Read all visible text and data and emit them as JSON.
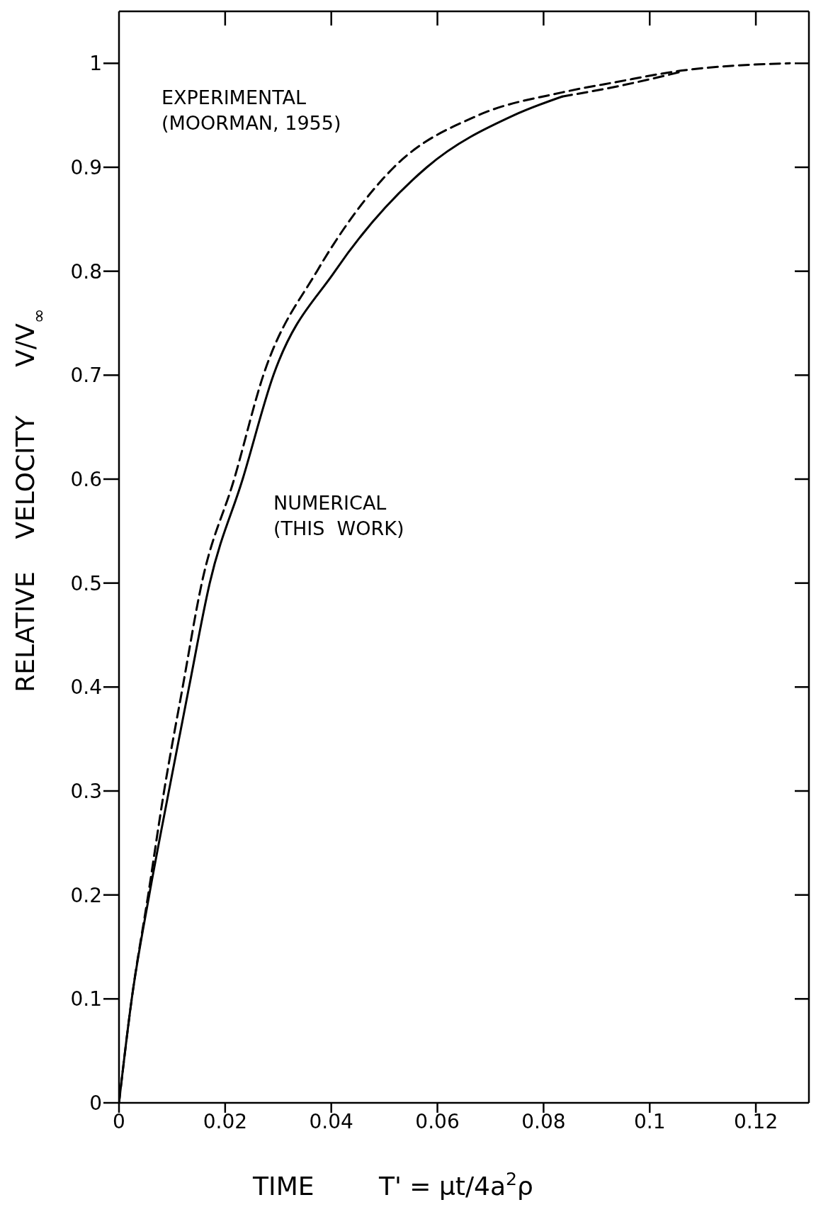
{
  "chart_data": {
    "type": "line",
    "xlabel": "TIME        T' = μt/4a$^{2}$ρ",
    "ylabel": "RELATIVE    VELOCITY      V/V$_{∞}$",
    "xlim": [
      0,
      0.13
    ],
    "ylim": [
      0,
      1.05
    ],
    "xticks": [
      0,
      0.02,
      0.04,
      0.06,
      0.08,
      0.1,
      0.12
    ],
    "yticks": [
      0,
      0.1,
      0.2,
      0.3,
      0.4,
      0.5,
      0.6,
      0.7,
      0.8,
      0.9,
      1.0
    ],
    "legend": false,
    "marker": "none",
    "annotations": [
      "EXPERIMENTAL\n(MOORMAN, 1955)",
      "NUMERICAL\n(THIS  WORK)"
    ],
    "series": [
      {
        "color": "#000000",
        "line_style": "dashed",
        "x": [
          0,
          0.0024,
          0.0055,
          0.0085,
          0.012,
          0.0156,
          0.0217,
          0.0272,
          0.0373,
          0.0518,
          0.0677,
          0.0835,
          0.0937,
          0.106,
          0.1206,
          0.1264
        ],
        "values": [
          0,
          0.1,
          0.2,
          0.3,
          0.4,
          0.5,
          0.6,
          0.7,
          0.8,
          0.9,
          0.95,
          0.972,
          0.982,
          0.993,
          0.999,
          1.0
        ]
      },
      {
        "color": "#000000",
        "line_style": "solid",
        "x": [
          0,
          0.0024,
          0.0057,
          0.0094,
          0.0132,
          0.0171,
          0.0233,
          0.0291,
          0.0407,
          0.058,
          0.0744,
          0.0835
        ],
        "values": [
          0,
          0.1,
          0.2,
          0.3,
          0.4,
          0.5,
          0.6,
          0.7,
          0.8,
          0.9,
          0.95,
          0.968
        ]
      },
      {
        "color": "#000000",
        "line_style": "dashed",
        "x": [
          0.0835,
          0.095,
          0.106
        ],
        "values": [
          0.968,
          0.979,
          0.992
        ]
      }
    ]
  }
}
